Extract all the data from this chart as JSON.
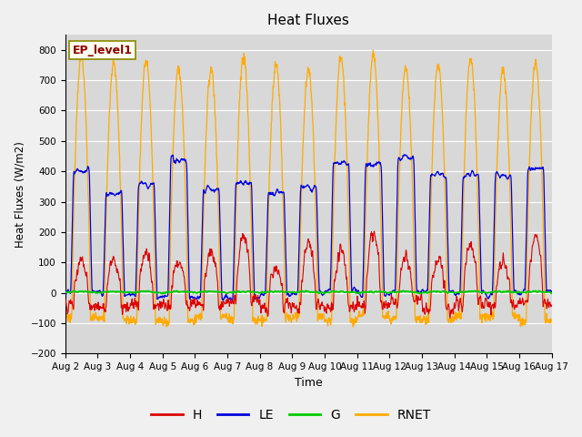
{
  "title": "Heat Fluxes",
  "xlabel": "Time",
  "ylabel": "Heat Fluxes (W/m2)",
  "ylim": [
    -200,
    850
  ],
  "yticks": [
    -200,
    -100,
    0,
    100,
    200,
    300,
    400,
    500,
    600,
    700,
    800
  ],
  "xtick_labels": [
    "Aug 2",
    "Aug 3",
    "Aug 4",
    "Aug 5",
    "Aug 6",
    "Aug 7",
    "Aug 8",
    "Aug 9",
    "Aug 10",
    "Aug 11",
    "Aug 12",
    "Aug 13",
    "Aug 14",
    "Aug 15",
    "Aug 16",
    "Aug 17"
  ],
  "colors": {
    "H": "#dd0000",
    "LE": "#0000dd",
    "G": "#00cc00",
    "RNET": "#ffaa00"
  },
  "annotation_text": "EP_level1",
  "annotation_color": "#8b0000",
  "annotation_bg": "#fffff0",
  "bg_color": "#d8d8d8",
  "grid_color": "#bbbbbb",
  "n_days": 15,
  "n_per_day": 96
}
